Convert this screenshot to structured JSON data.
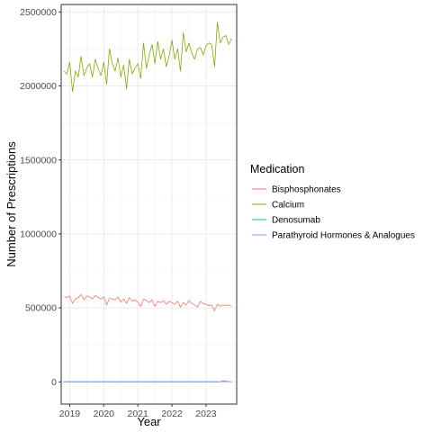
{
  "chart_data": {
    "type": "line",
    "xlabel": "Year",
    "ylabel": "Number of Prescriptions",
    "xlim": [
      2018.75,
      2023.9
    ],
    "ylim": [
      -150000,
      2550000
    ],
    "x_ticks": [
      2019,
      2020,
      2021,
      2022,
      2023
    ],
    "x_tick_labels": [
      "2019",
      "2020",
      "2021",
      "2022",
      "2023"
    ],
    "y_ticks": [
      0,
      500000,
      1000000,
      1500000,
      2000000,
      2500000
    ],
    "y_tick_labels": [
      "0",
      "500000",
      "1000000",
      "1500000",
      "2000000",
      "2500000"
    ],
    "grid": true,
    "legend": {
      "title": "Medication",
      "placement": "right"
    },
    "x": [
      2018.833,
      2018.917,
      2019.0,
      2019.083,
      2019.167,
      2019.25,
      2019.333,
      2019.417,
      2019.5,
      2019.583,
      2019.667,
      2019.75,
      2019.833,
      2019.917,
      2020.0,
      2020.083,
      2020.167,
      2020.25,
      2020.333,
      2020.417,
      2020.5,
      2020.583,
      2020.667,
      2020.75,
      2020.833,
      2020.917,
      2021.0,
      2021.083,
      2021.167,
      2021.25,
      2021.333,
      2021.417,
      2021.5,
      2021.583,
      2021.667,
      2021.75,
      2021.833,
      2021.917,
      2022.0,
      2022.083,
      2022.167,
      2022.25,
      2022.333,
      2022.417,
      2022.5,
      2022.583,
      2022.667,
      2022.75,
      2022.833,
      2022.917,
      2023.0,
      2023.083,
      2023.167,
      2023.25,
      2023.333,
      2023.417,
      2023.5,
      2023.583,
      2023.667,
      2023.75
    ],
    "series": [
      {
        "name": "Bisphosphonates",
        "color": "#F8766D",
        "values": [
          575000,
          570000,
          580000,
          530000,
          560000,
          570000,
          590000,
          555000,
          580000,
          575000,
          560000,
          585000,
          570000,
          560000,
          575000,
          520000,
          565000,
          560000,
          555000,
          575000,
          540000,
          560000,
          530000,
          570000,
          545000,
          555000,
          540000,
          510000,
          560000,
          550000,
          535000,
          555000,
          510000,
          545000,
          535000,
          550000,
          525000,
          545000,
          535000,
          525000,
          545000,
          505000,
          535000,
          520000,
          550000,
          530000,
          520000,
          505000,
          545000,
          530000,
          525000,
          515000,
          520000,
          480000,
          525000,
          510000,
          520000,
          515000,
          520000,
          510000
        ]
      },
      {
        "name": "Calcium",
        "color": "#7CAE00",
        "values": [
          2100000,
          2080000,
          2160000,
          1960000,
          2100000,
          2060000,
          2200000,
          2070000,
          2120000,
          2150000,
          2060000,
          2180000,
          2120000,
          2070000,
          2160000,
          2010000,
          2250000,
          2150000,
          2100000,
          2190000,
          2060000,
          2140000,
          1980000,
          2180000,
          2080000,
          2120000,
          2150000,
          2050000,
          2290000,
          2120000,
          2210000,
          2280000,
          2150000,
          2300000,
          2180000,
          2250000,
          2130000,
          2200000,
          2310000,
          2180000,
          2250000,
          2100000,
          2360000,
          2230000,
          2290000,
          2220000,
          2180000,
          2250000,
          2260000,
          2210000,
          2270000,
          2290000,
          2280000,
          2130000,
          2430000,
          2290000,
          2330000,
          2340000,
          2280000,
          2320000
        ]
      },
      {
        "name": "Denosumab",
        "color": "#00BFC4",
        "values": [
          0,
          0,
          0,
          0,
          0,
          0,
          0,
          0,
          0,
          0,
          0,
          0,
          0,
          0,
          0,
          0,
          0,
          0,
          0,
          0,
          0,
          0,
          0,
          0,
          0,
          0,
          0,
          0,
          0,
          0,
          0,
          0,
          0,
          0,
          0,
          0,
          0,
          0,
          0,
          0,
          0,
          0,
          0,
          0,
          0,
          0,
          0,
          0,
          0,
          0,
          0,
          0,
          0,
          0,
          0,
          0,
          8000,
          6000,
          2000,
          1000
        ]
      },
      {
        "name": "Parathyroid Hormones & Analogues",
        "color": "#C77CFF",
        "values": [
          2000,
          2000,
          2000,
          2000,
          2000,
          2000,
          2000,
          2000,
          2000,
          2000,
          2000,
          2000,
          2000,
          2000,
          2000,
          2000,
          2000,
          2000,
          2000,
          2000,
          2000,
          2000,
          2000,
          2000,
          2000,
          2000,
          2000,
          2000,
          2000,
          2000,
          2000,
          2000,
          2000,
          2000,
          2000,
          2000,
          2000,
          2000,
          2000,
          2000,
          2000,
          2000,
          2000,
          2000,
          2000,
          2000,
          2000,
          2000,
          2000,
          2000,
          2000,
          2000,
          2000,
          2000,
          2000,
          2000,
          2000,
          2000,
          2000,
          2000
        ]
      }
    ]
  }
}
